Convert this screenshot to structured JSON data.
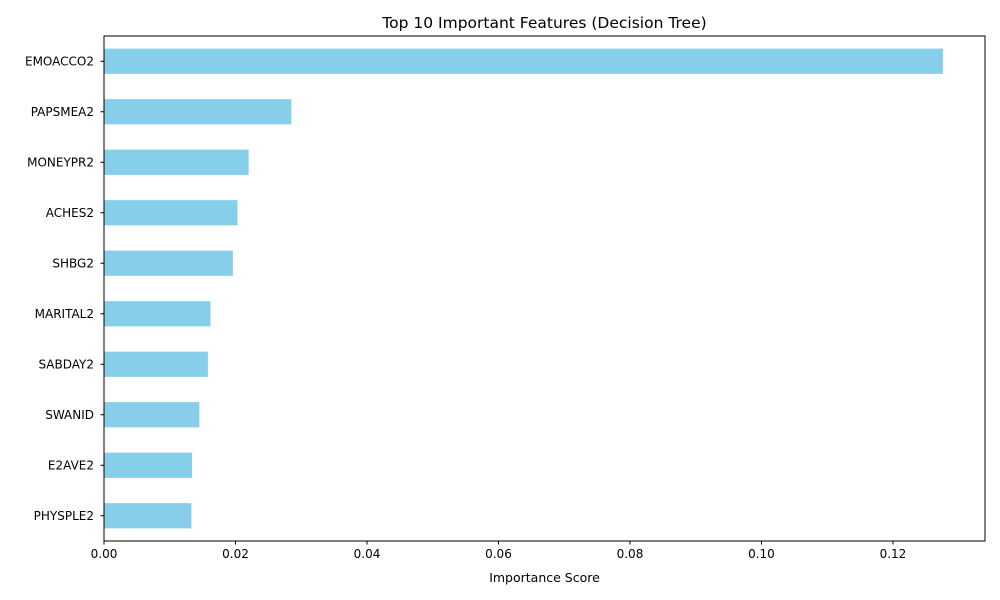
{
  "chart_data": {
    "type": "bar",
    "orientation": "horizontal",
    "title": "Top 10 Important Features (Decision Tree)",
    "xlabel": "Importance Score",
    "ylabel": "",
    "categories": [
      "EMOACCO2",
      "PAPSMEA2",
      "MONEYPR2",
      "ACHES2",
      "SHBG2",
      "MARITAL2",
      "SABDAY2",
      "SWANID",
      "E2AVE2",
      "PHYSPLE2"
    ],
    "values": [
      0.1276,
      0.0285,
      0.022,
      0.0203,
      0.0196,
      0.0162,
      0.0158,
      0.0145,
      0.0134,
      0.0133
    ],
    "xlim": [
      0,
      0.134
    ],
    "xticks": [
      0.0,
      0.02,
      0.04,
      0.06,
      0.08,
      0.1,
      0.12
    ],
    "xtick_labels": [
      "0.00",
      "0.02",
      "0.04",
      "0.06",
      "0.08",
      "0.10",
      "0.12"
    ],
    "grid": false,
    "bar_color": "#87ceeb"
  }
}
